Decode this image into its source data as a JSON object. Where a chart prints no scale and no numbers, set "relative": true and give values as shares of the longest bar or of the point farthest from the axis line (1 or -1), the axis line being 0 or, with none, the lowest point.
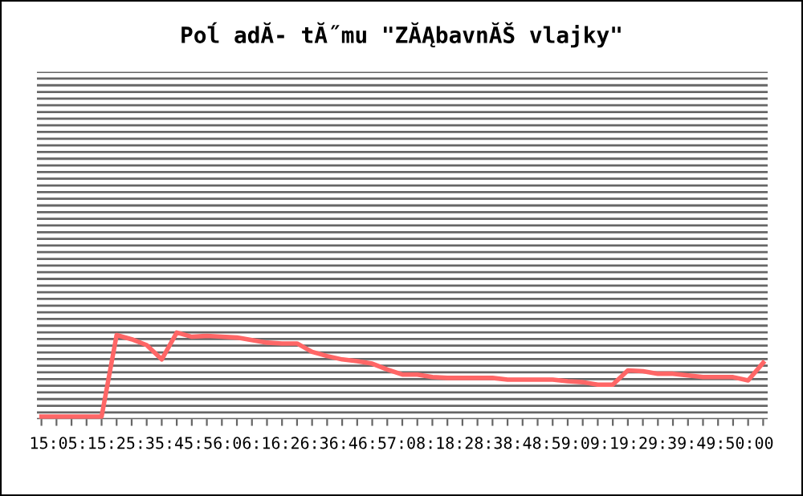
{
  "chart_data": {
    "type": "line",
    "title": "Poĺ adĂ- tĂ˝mu \"ZĂĄbavnĂŠ vlajky\"",
    "relative": true,
    "grid": "y",
    "marker": "none",
    "line_style": "solid",
    "categories": [
      null,
      null,
      null,
      null,
      null,
      null,
      null,
      null,
      null,
      null,
      null,
      null,
      null,
      null,
      null,
      null,
      null,
      null,
      null,
      null,
      null,
      null,
      null,
      null,
      null,
      null,
      null,
      null,
      null,
      null,
      null,
      null,
      null,
      null,
      null,
      null,
      null,
      null,
      null,
      null,
      null,
      null,
      null,
      null,
      null,
      null,
      null,
      null,
      null
    ],
    "series": [
      {
        "color": "#ff6666",
        "values": [
          0,
          0,
          0,
          0,
          0,
          0.97,
          0.92,
          0.85,
          0.68,
          1,
          0.95,
          0.96,
          0.95,
          0.94,
          0.91,
          0.88,
          0.87,
          0.87,
          0.77,
          0.72,
          0.68,
          0.66,
          0.63,
          0.56,
          0.5,
          0.5,
          0.47,
          0.46,
          0.46,
          0.46,
          0.46,
          0.44,
          0.44,
          0.44,
          0.44,
          0.42,
          0.41,
          0.38,
          0.38,
          0.55,
          0.54,
          0.51,
          0.51,
          0.49,
          0.47,
          0.47,
          0.47,
          0.43,
          0.64
        ]
      }
    ],
    "annotations": [
      "15:05:15:25:35:45:56:06:16:26:36:46:57:08:18:28:38:48:59:09:19:29:39:49:50:00"
    ]
  }
}
